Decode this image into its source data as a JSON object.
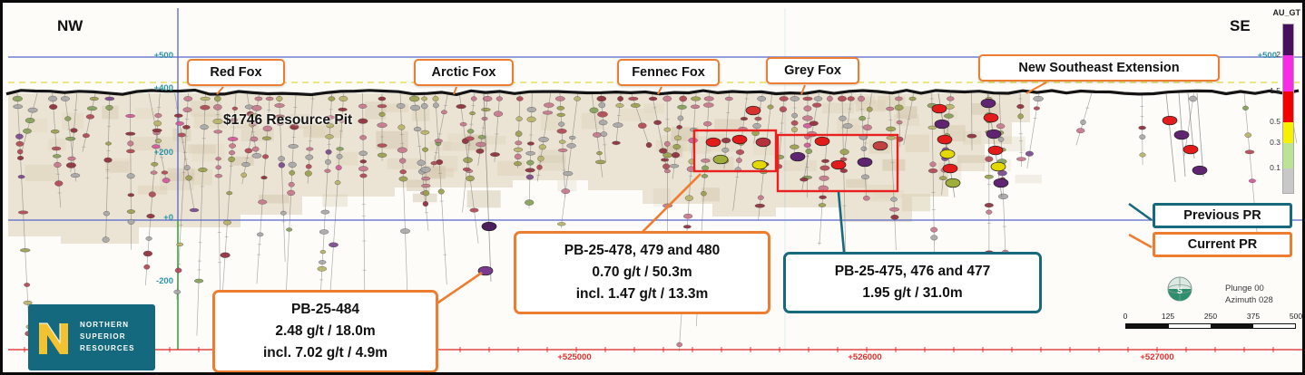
{
  "orientation": {
    "left": "NW",
    "right": "SE"
  },
  "zones": [
    {
      "label": "Red Fox"
    },
    {
      "label": "Arctic Fox"
    },
    {
      "label": "Fennec Fox"
    },
    {
      "label": "Grey Fox"
    },
    {
      "label": "New Southeast Extension"
    }
  ],
  "resource_pit_label": "$1746 Resource Pit",
  "callouts": [
    {
      "id": "PB-25-484",
      "style": "current",
      "lines": [
        "PB-25-484",
        "2.48 g/t / 18.0m",
        "incl. 7.02 g/t / 4.9m"
      ]
    },
    {
      "id": "PB-25-478-480",
      "style": "current",
      "lines": [
        "PB-25-478, 479 and 480",
        "0.70 g/t / 50.3m",
        "incl. 1.47 g/t / 13.3m"
      ]
    },
    {
      "id": "PB-25-475-477",
      "style": "previous",
      "lines": [
        "PB-25-475, 476 and 477",
        "1.95 g/t / 31.0m"
      ]
    }
  ],
  "legend": {
    "previous_pr": {
      "label": "Previous PR",
      "color": "#17697E"
    },
    "current_pr": {
      "label": "Current PR",
      "color": "#ED7D31"
    }
  },
  "grade_legend": {
    "title": "AU_GT",
    "entries": [
      {
        "color": "#4A1060",
        "label": ""
      },
      {
        "color": "#F72BE4",
        "label": "2"
      },
      {
        "color": "#F20000",
        "label": "1.5"
      },
      {
        "color": "#F7F000",
        "label": "0.5"
      },
      {
        "color": "#BCE393",
        "label": "0.3"
      },
      {
        "color": "#C8C8C8",
        "label": "0.1"
      }
    ]
  },
  "axes": {
    "elevations": [
      "+500",
      "+400",
      "+200",
      "+0",
      "-200"
    ],
    "right_elevation": "+500",
    "eastings": [
      "+525000",
      "+526000",
      "+527000"
    ]
  },
  "view": {
    "plunge": "Plunge 00",
    "azimuth": "Azimuth 028",
    "globe_label": "S"
  },
  "scale_bar": {
    "ticks": [
      "0",
      "125",
      "250",
      "375",
      "500"
    ]
  },
  "logo": {
    "line1": "NORTHERN",
    "line2": "SUPERIOR",
    "line3": "RESOURCES"
  },
  "highlight_color": "#E82020"
}
